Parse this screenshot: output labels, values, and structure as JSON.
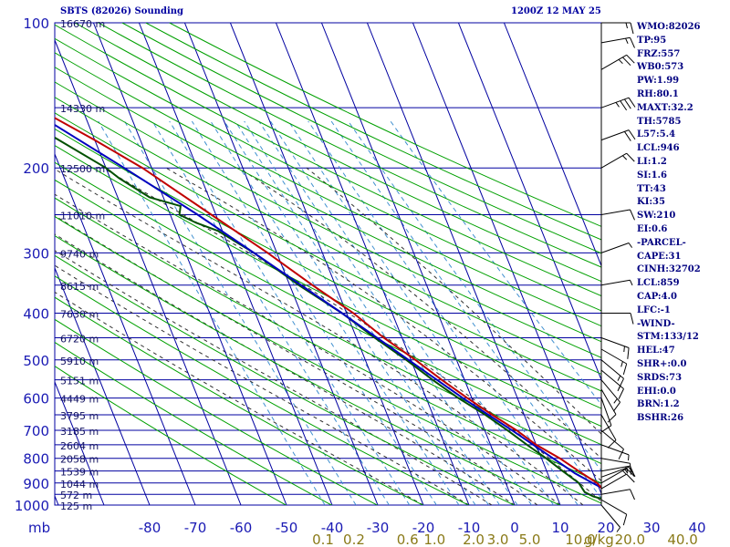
{
  "title_left": "SBTS (82026) Sounding",
  "title_right": "1200Z 12 MAY 25",
  "stats": [
    "WMO:82026",
    "TP:95",
    "FRZ:557",
    "WB0:573",
    "PW:1.99",
    "RH:80.1",
    "MAXT:32.2",
    "TH:5785",
    "L57:5.4",
    "LCL:946",
    "LI:1.2",
    "SI:1.6",
    "TT:43",
    "KI:35",
    "SW:210",
    "EI:0.6",
    "-PARCEL-",
    "CAPE:31",
    "CINH:32702",
    "LCL:859",
    "CAP:4.0",
    "LFC:-1",
    "-WIND-",
    "STM:133/12",
    "HEL:47",
    "SHR+:0.0",
    "SRDS:73",
    "EHI:0.0",
    "BRN:1.2",
    "BSHR:26"
  ],
  "colors": {
    "grid": "#0000a0",
    "dry_adiabat": "#00a000",
    "moist_adiabat": "#303030",
    "mixing_ratio": "#4090d0",
    "temperature": "#c00000",
    "dewpoint": "#005000",
    "parcel": "#0000c0",
    "mixing_ratio_text": "#8a7a18",
    "wind": "#000000"
  },
  "chart_data": {
    "type": "skew-t log-p sounding",
    "pressure_axis": {
      "unit": "mb",
      "range": [
        1000,
        100
      ],
      "scale": "log",
      "ticks": [
        100,
        200,
        300,
        400,
        500,
        600,
        700,
        800,
        900,
        1000
      ],
      "tick_labels": [
        "100",
        "200",
        "300",
        "400",
        "500",
        "600",
        "700",
        "800",
        "900",
        "1000"
      ]
    },
    "temperature_axis": {
      "unit": "C",
      "skewed": true,
      "range": [
        -80,
        40
      ],
      "ticks": [
        -80,
        -70,
        -60,
        -50,
        -40,
        -30,
        -20,
        -10,
        0,
        10,
        20,
        30,
        40
      ],
      "tick_labels": [
        "-80",
        "-70",
        "-60",
        "-50",
        "-40",
        "-30",
        "-20",
        "-10",
        "0",
        "10",
        "20",
        "30",
        "40"
      ],
      "unit_label": "mb"
    },
    "height_labels": [
      {
        "p": 100,
        "label": "16670 m"
      },
      {
        "p": 150,
        "label": "14330 m"
      },
      {
        "p": 200,
        "label": "12500 m"
      },
      {
        "p": 250,
        "label": "11010 m"
      },
      {
        "p": 300,
        "label": "9740 m"
      },
      {
        "p": 350,
        "label": "8615 m"
      },
      {
        "p": 400,
        "label": "7630 m"
      },
      {
        "p": 450,
        "label": "6720 m"
      },
      {
        "p": 500,
        "label": "5910 m"
      },
      {
        "p": 550,
        "label": "5151 m"
      },
      {
        "p": 600,
        "label": "4449 m"
      },
      {
        "p": 650,
        "label": "3795 m"
      },
      {
        "p": 700,
        "label": "3185 m"
      },
      {
        "p": 750,
        "label": "2604 m"
      },
      {
        "p": 800,
        "label": "2058 m"
      },
      {
        "p": 850,
        "label": "1539 m"
      },
      {
        "p": 900,
        "label": "1044 m"
      },
      {
        "p": 950,
        "label": "572 m"
      },
      {
        "p": 1000,
        "label": "125 m"
      }
    ],
    "mixing_ratio_labels": [
      "0.1",
      "0.2",
      "0.6",
      "1.0",
      "2.0",
      "3.0",
      "5.0",
      "10.0",
      "20.0",
      "40.0"
    ],
    "mixing_ratio_values": [
      0.1,
      0.2,
      0.6,
      1.0,
      2.0,
      3.0,
      5.0,
      10.0,
      20.0,
      40.0
    ],
    "mixing_ratio_unit": "g/kg",
    "extra_mixing_ratio_lines": [
      0.4,
      1.5,
      2.5,
      4.0,
      7.0,
      15.0
    ],
    "dry_adiabats_theta_K": [
      223,
      233,
      243,
      253,
      263,
      273,
      283,
      293,
      303,
      313,
      323,
      333,
      343,
      353,
      363,
      373,
      383,
      393,
      403,
      413,
      423,
      433,
      443,
      453,
      463
    ],
    "moist_adiabats_start_C": [
      -20,
      -10,
      -5,
      0,
      5,
      10,
      15,
      20,
      25,
      30,
      35
    ],
    "temperature": [
      {
        "p": 1000,
        "t": 28
      },
      {
        "p": 985,
        "t": 26
      },
      {
        "p": 970,
        "t": 22
      },
      {
        "p": 960,
        "t": 21
      },
      {
        "p": 940,
        "t": 21
      },
      {
        "p": 900,
        "t": 20
      },
      {
        "p": 850,
        "t": 17
      },
      {
        "p": 800,
        "t": 14
      },
      {
        "p": 750,
        "t": 10
      },
      {
        "p": 700,
        "t": 7
      },
      {
        "p": 650,
        "t": 3
      },
      {
        "p": 600,
        "t": -1
      },
      {
        "p": 550,
        "t": -5
      },
      {
        "p": 500,
        "t": -9
      },
      {
        "p": 450,
        "t": -14
      },
      {
        "p": 400,
        "t": -18.5
      },
      {
        "p": 350,
        "t": -25
      },
      {
        "p": 300,
        "t": -32
      },
      {
        "p": 250,
        "t": -41
      },
      {
        "p": 200,
        "t": -52
      },
      {
        "p": 175,
        "t": -60
      },
      {
        "p": 150,
        "t": -70
      },
      {
        "p": 140,
        "t": -74
      },
      {
        "p": 130,
        "t": -74
      },
      {
        "p": 120,
        "t": -74
      },
      {
        "p": 110,
        "t": -76
      },
      {
        "p": 100,
        "t": -80
      }
    ],
    "dewpoint": [
      {
        "p": 1000,
        "t": 24
      },
      {
        "p": 985,
        "t": 22
      },
      {
        "p": 960,
        "t": 18
      },
      {
        "p": 940,
        "t": 16.5
      },
      {
        "p": 900,
        "t": 16
      },
      {
        "p": 850,
        "t": 13.5
      },
      {
        "p": 800,
        "t": 11
      },
      {
        "p": 750,
        "t": 8
      },
      {
        "p": 700,
        "t": 5
      },
      {
        "p": 650,
        "t": 1.5
      },
      {
        "p": 600,
        "t": -3
      },
      {
        "p": 550,
        "t": -7
      },
      {
        "p": 500,
        "t": -11
      },
      {
        "p": 450,
        "t": -16
      },
      {
        "p": 400,
        "t": -21
      },
      {
        "p": 350,
        "t": -28
      },
      {
        "p": 300,
        "t": -35
      },
      {
        "p": 270,
        "t": -41
      },
      {
        "p": 260,
        "t": -45
      },
      {
        "p": 250,
        "t": -48
      },
      {
        "p": 240,
        "t": -47
      },
      {
        "p": 230,
        "t": -53
      },
      {
        "p": 210,
        "t": -58
      },
      {
        "p": 200,
        "t": -60
      },
      {
        "p": 150,
        "t": -77
      },
      {
        "p": 132,
        "t": -83
      }
    ],
    "parcel": [
      {
        "p": 985,
        "t": 25
      },
      {
        "p": 940,
        "t": 22
      },
      {
        "p": 900,
        "t": 19
      },
      {
        "p": 859,
        "t": 16
      },
      {
        "p": 800,
        "t": 12.5
      },
      {
        "p": 700,
        "t": 6
      },
      {
        "p": 600,
        "t": -2
      },
      {
        "p": 500,
        "t": -10.5
      },
      {
        "p": 400,
        "t": -21
      },
      {
        "p": 300,
        "t": -35
      },
      {
        "p": 250,
        "t": -44
      },
      {
        "p": 200,
        "t": -56
      },
      {
        "p": 150,
        "t": -72
      },
      {
        "p": 132,
        "t": -80
      }
    ],
    "wind_barbs": [
      {
        "p": 1000,
        "dir": 140,
        "spd": 5
      },
      {
        "p": 975,
        "dir": 120,
        "spd": 10
      },
      {
        "p": 950,
        "dir": 80,
        "spd": 10
      },
      {
        "p": 925,
        "dir": 60,
        "spd": 10
      },
      {
        "p": 900,
        "dir": 60,
        "spd": 15
      },
      {
        "p": 875,
        "dir": 70,
        "spd": 15
      },
      {
        "p": 850,
        "dir": 80,
        "spd": 15
      },
      {
        "p": 800,
        "dir": 100,
        "spd": 10
      },
      {
        "p": 750,
        "dir": 110,
        "spd": 5
      },
      {
        "p": 700,
        "dir": 130,
        "spd": 10
      },
      {
        "p": 650,
        "dir": 150,
        "spd": 10
      },
      {
        "p": 600,
        "dir": 160,
        "spd": 10
      },
      {
        "p": 575,
        "dir": 150,
        "spd": 10
      },
      {
        "p": 550,
        "dir": 140,
        "spd": 15
      },
      {
        "p": 525,
        "dir": 130,
        "spd": 15
      },
      {
        "p": 500,
        "dir": 130,
        "spd": 15
      },
      {
        "p": 475,
        "dir": 120,
        "spd": 15
      },
      {
        "p": 450,
        "dir": 110,
        "spd": 15
      },
      {
        "p": 400,
        "dir": 90,
        "spd": 10
      },
      {
        "p": 350,
        "dir": 80,
        "spd": 5
      },
      {
        "p": 300,
        "dir": 70,
        "spd": 5
      },
      {
        "p": 250,
        "dir": 80,
        "spd": 10
      },
      {
        "p": 200,
        "dir": 60,
        "spd": 15
      },
      {
        "p": 175,
        "dir": 70,
        "spd": 20
      },
      {
        "p": 150,
        "dir": 70,
        "spd": 35
      },
      {
        "p": 125,
        "dir": 60,
        "spd": 25
      },
      {
        "p": 110,
        "dir": 80,
        "spd": 15
      },
      {
        "p": 100,
        "dir": 90,
        "spd": 15
      }
    ]
  }
}
